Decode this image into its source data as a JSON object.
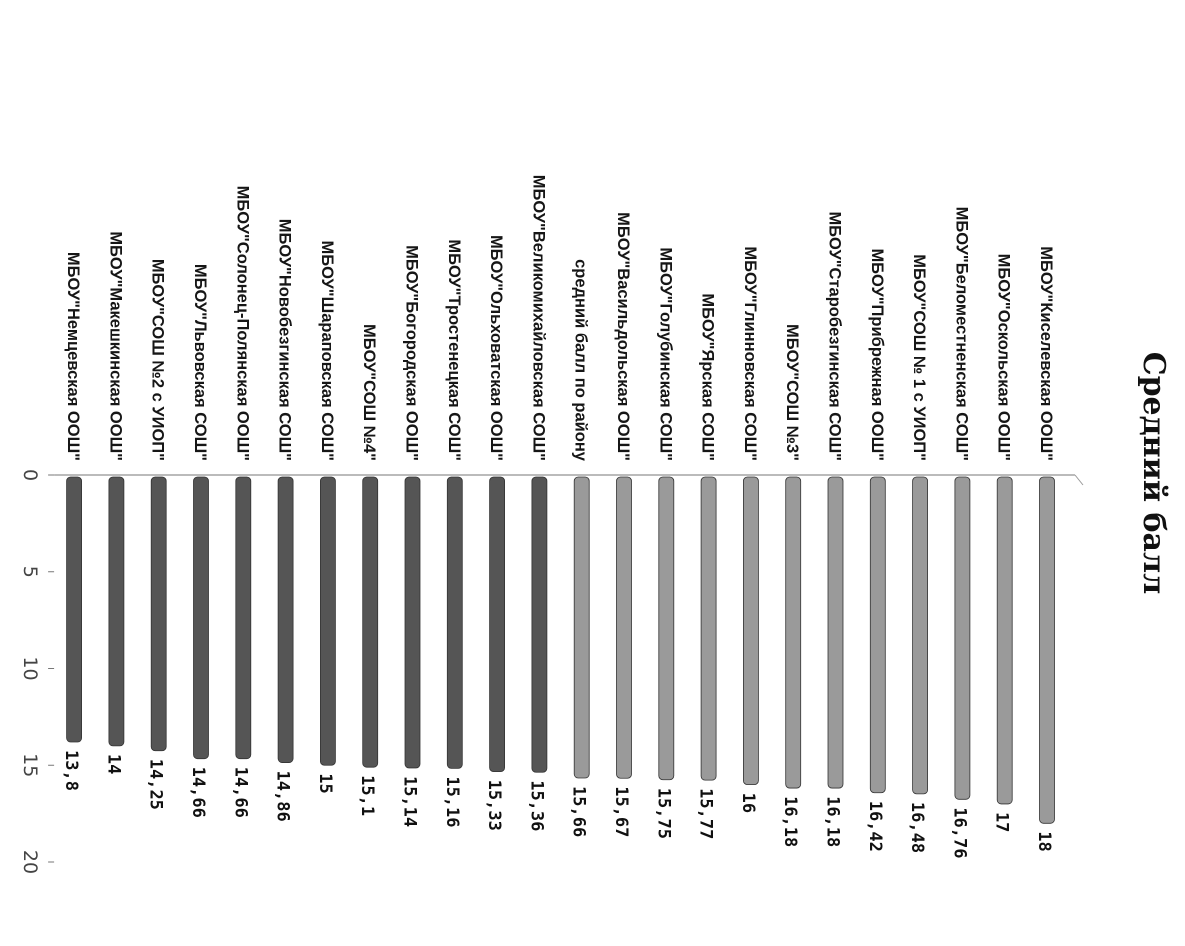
{
  "chart_data": {
    "type": "bar",
    "orientation": "horizontal",
    "title": "Средний балл",
    "categories": [
      "МБОУ\"Киселевская ООШ\"",
      "МБОУ\"Оскольская ООШ\"",
      "МБОУ\"Беломестненская СОШ\"",
      "МБОУ\"СОШ № 1 с УИОП\"",
      "МБОУ\"Прибрежная ООШ\"",
      "МБОУ\"Старобезгинская СОШ\"",
      "МБОУ\"СОШ №3\"",
      "МБОУ\"Глинновская СОШ\"",
      "МБОУ\"Ярская СОШ\"",
      "МБОУ\"Голубинская СОШ\"",
      "МБОУ\"Васильдольская ООШ\"",
      "средний балл по району",
      "МБОУ\"Великомихайловская СОШ\"",
      "МБОУ\"Ольховатская ООШ\"",
      "МБОУ\"Тростенецкая СОШ\"",
      "МБОУ\"Богородская ООШ\"",
      "МБОУ\"СОШ №4\"",
      "МБОУ\"Шараповская СОШ\"",
      "МБОУ\"Новобезгинская СОШ\"",
      "МБОУ\"Солонец-Полянская ООШ\"",
      "МБОУ\"Львовская СОШ\"",
      "МБОУ\"СОШ №2 с УИОП\"",
      "МБОУ\"Макешкинская ООШ\"",
      "МБОУ\"Немцевская ООШ\""
    ],
    "values": [
      18,
      17,
      16.76,
      16.48,
      16.42,
      16.18,
      16.18,
      16,
      15.77,
      15.75,
      15.67,
      15.66,
      15.36,
      15.33,
      15.16,
      15.14,
      15.1,
      15,
      14.86,
      14.66,
      14.66,
      14.25,
      14,
      13.8
    ],
    "value_labels": [
      "18",
      "17",
      "16,76",
      "16,48",
      "16,42",
      "16,18",
      "16,18",
      "16",
      "15,77",
      "15,75",
      "15,67",
      "15,66",
      "15,36",
      "15,33",
      "15,16",
      "15,14",
      "15,1",
      "15",
      "14,86",
      "14,66",
      "14,66",
      "14,25",
      "14",
      "13,8"
    ],
    "xlim": [
      0,
      20
    ],
    "ticks": [
      "0",
      "5",
      "10",
      "15",
      "20"
    ],
    "grid": false,
    "colors": {
      "above_average": "#9a9a9a",
      "below_average": "#555555"
    }
  }
}
